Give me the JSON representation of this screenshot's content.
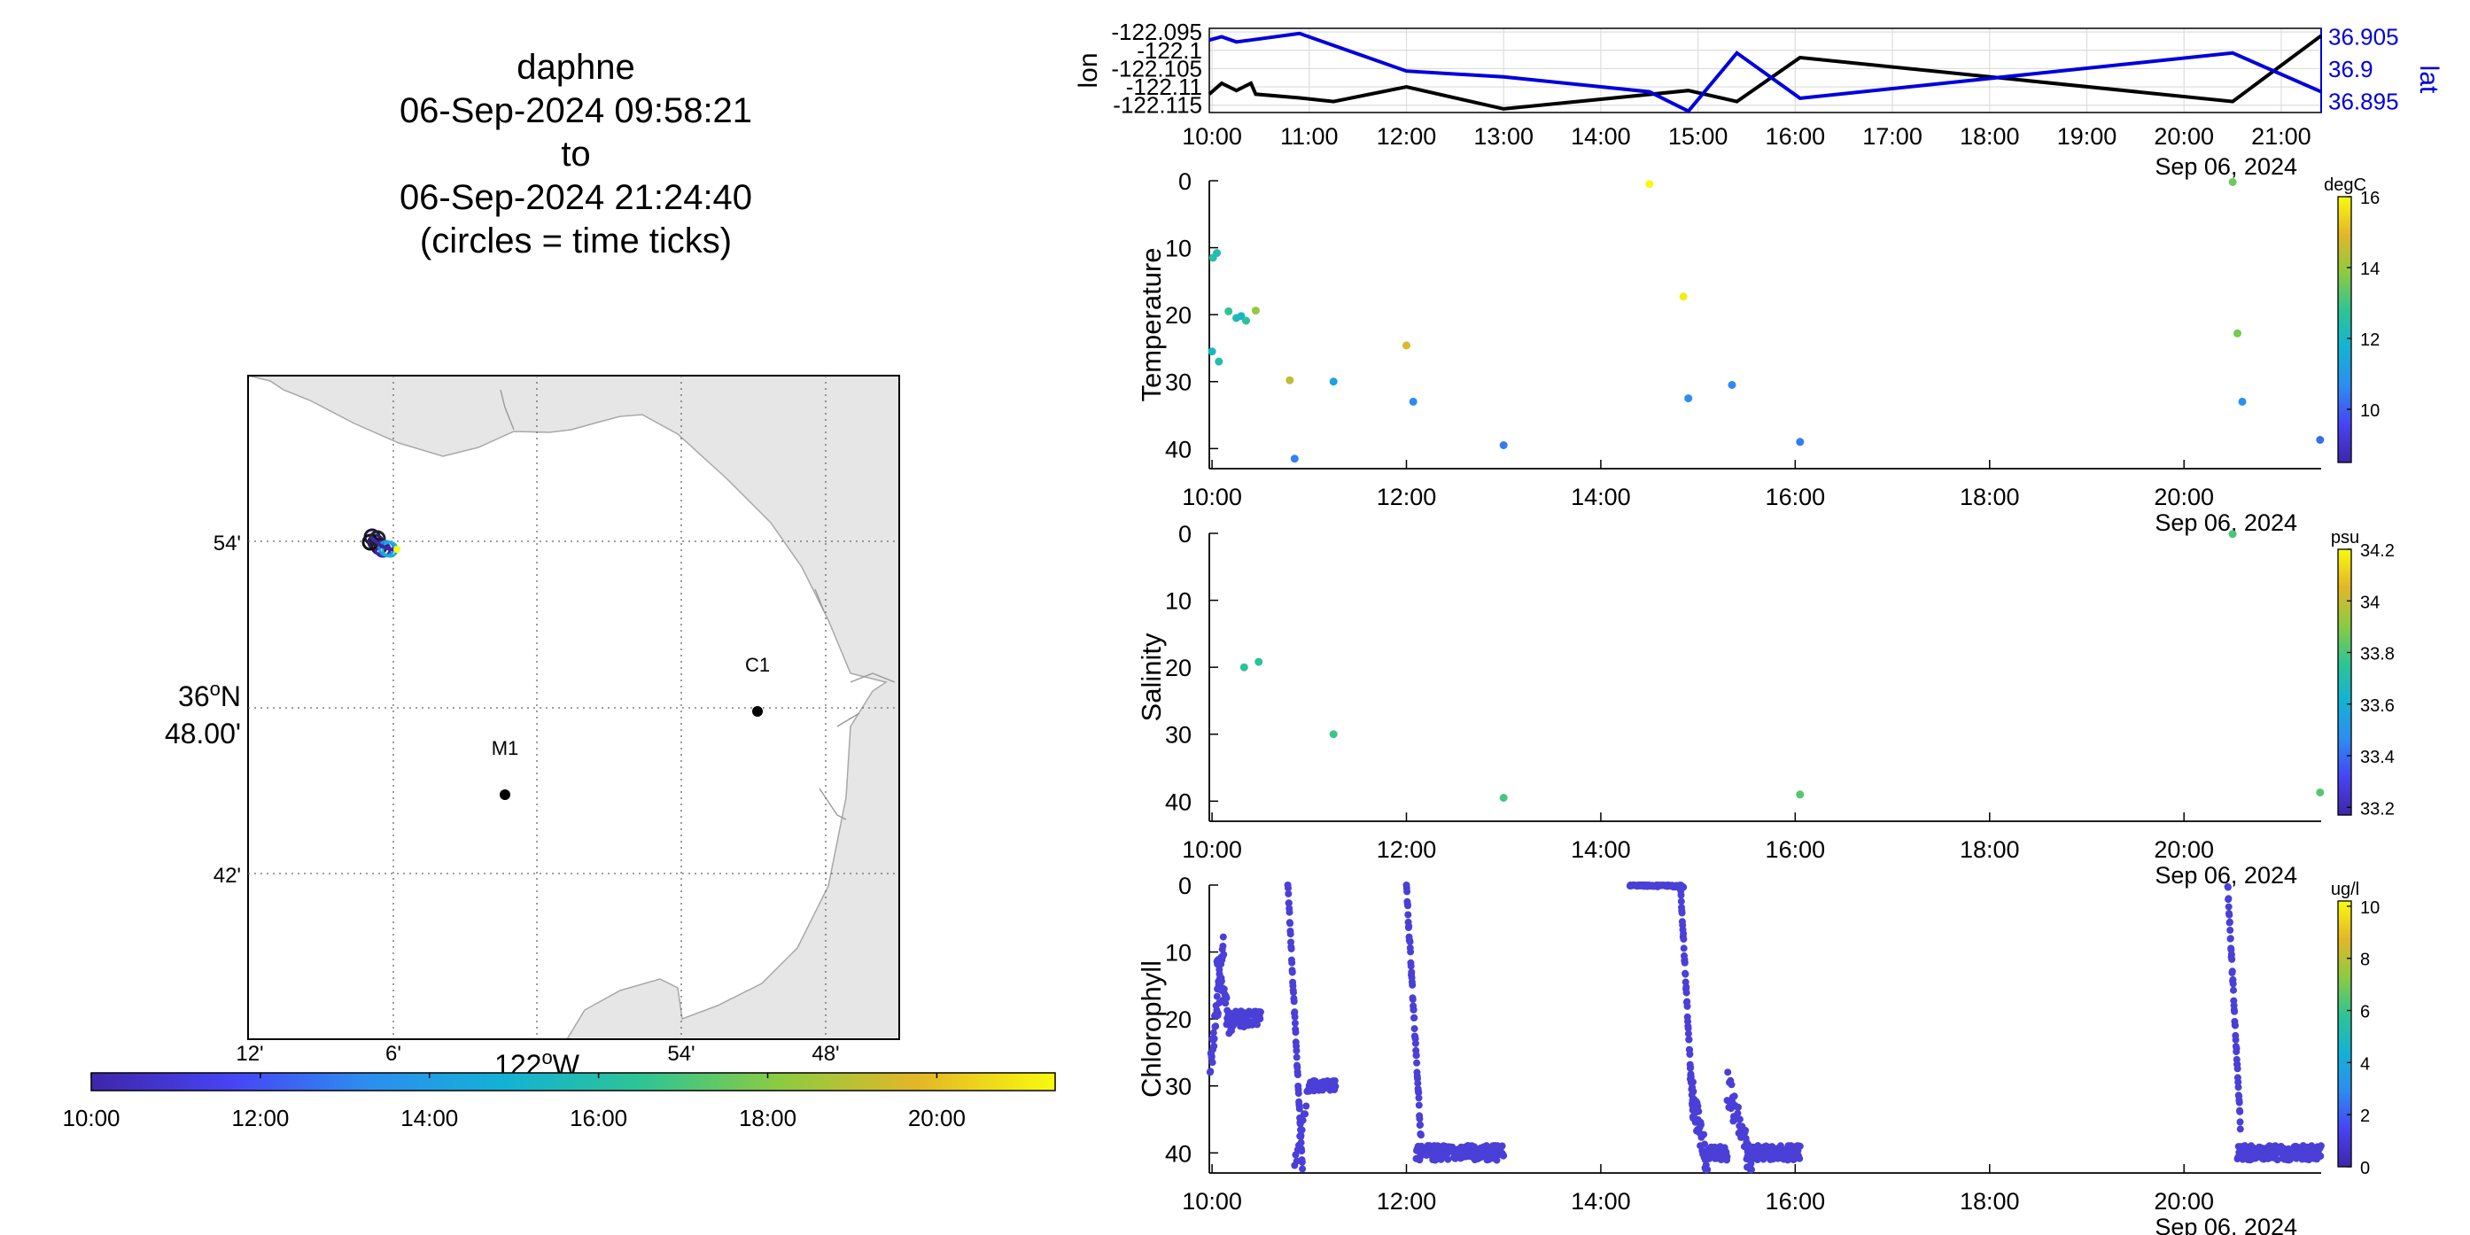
{
  "title": {
    "vehicle": "daphne",
    "start": "06-Sep-2024 09:58:21",
    "to": "to",
    "end": "06-Sep-2024 21:24:40",
    "note": "(circles = time ticks)"
  },
  "colors": {
    "navigation_lon": "#000000",
    "navigation_lat": "#0000dd",
    "land": "#e6e6e6",
    "colormap": [
      "#3e26a8",
      "#4743f4",
      "#2d8df0",
      "#13b2d4",
      "#2ec495",
      "#8ccb41",
      "#e3b628",
      "#f8fa0d"
    ]
  },
  "map": {
    "lat_ticks": [
      "54'",
      "36",
      "o",
      "N",
      "48.00'",
      "42'"
    ],
    "lon_ticks": [
      "12'",
      "6'",
      "122",
      "o",
      "W",
      "54'",
      "48'"
    ],
    "stations": [
      {
        "name": "C1"
      },
      {
        "name": "M1"
      }
    ],
    "time_colorbar_ticks": [
      "10:00",
      "12:00",
      "14:00",
      "16:00",
      "18:00",
      "20:00"
    ]
  },
  "chart_data": [
    {
      "type": "line",
      "name": "navigation",
      "x_ticks": [
        "10:00",
        "11:00",
        "12:00",
        "13:00",
        "14:00",
        "15:00",
        "16:00",
        "17:00",
        "18:00",
        "19:00",
        "20:00",
        "21:00"
      ],
      "date_label": "Sep 06, 2024",
      "xlim": [
        9.972,
        21.411
      ],
      "ylabel_left": "lon",
      "ylabel_right": "lat",
      "left_ticks": [
        "-122.095",
        "-122.1",
        "-122.105",
        "-122.11",
        "-122.115"
      ],
      "right_ticks": [
        "36.905",
        "36.9",
        "36.895"
      ],
      "ylim_left": [
        -122.117,
        -122.094
      ],
      "ylim_right": [
        36.8933,
        36.9063
      ],
      "series": [
        {
          "axis": "left",
          "values": [
            [
              9.972,
              -122.112
            ],
            [
              10.1,
              -122.109
            ],
            [
              10.25,
              -122.111
            ],
            [
              10.4,
              -122.109
            ],
            [
              10.45,
              -122.112
            ],
            [
              10.9,
              -122.113
            ],
            [
              11.25,
              -122.114
            ],
            [
              12.0,
              -122.11
            ],
            [
              13.0,
              -122.116
            ],
            [
              14.9,
              -122.111
            ],
            [
              15.4,
              -122.114
            ],
            [
              16.05,
              -122.102
            ],
            [
              20.5,
              -122.114
            ],
            [
              21.411,
              -122.096
            ]
          ]
        },
        {
          "axis": "right",
          "values": [
            [
              9.972,
              36.9045
            ],
            [
              10.1,
              36.905
            ],
            [
              10.25,
              36.9042
            ],
            [
              10.4,
              36.9045
            ],
            [
              10.9,
              36.9055
            ],
            [
              12.0,
              36.8997
            ],
            [
              13.0,
              36.8988
            ],
            [
              14.5,
              36.8965
            ],
            [
              14.9,
              36.8935
            ],
            [
              15.4,
              36.9025
            ],
            [
              16.05,
              36.8955
            ],
            [
              20.5,
              36.9025
            ],
            [
              21.411,
              36.8965
            ]
          ]
        }
      ]
    },
    {
      "type": "scatter",
      "name": "temperature",
      "ylabel": "Temperature",
      "ylim": [
        0,
        43
      ],
      "y_ticks": [
        "0",
        "10",
        "20",
        "30",
        "40"
      ],
      "x_ticks": [
        "10:00",
        "12:00",
        "14:00",
        "16:00",
        "18:00",
        "20:00"
      ],
      "date_label": "Sep 06, 2024",
      "xlim": [
        9.972,
        21.411
      ],
      "colorbar_unit": "degC",
      "colorbar_ticks": [
        "16",
        "14",
        "12",
        "10"
      ],
      "clim": [
        8.5,
        16.0
      ],
      "points": [
        [
          10.01,
          11.5,
          12.5
        ],
        [
          10.05,
          10.8,
          12.3
        ],
        [
          10.0,
          25.5,
          12.0
        ],
        [
          10.07,
          27.0,
          12.4
        ],
        [
          10.17,
          19.5,
          12.8
        ],
        [
          10.25,
          20.5,
          12.2
        ],
        [
          10.3,
          20.2,
          12.0
        ],
        [
          10.35,
          20.9,
          12.6
        ],
        [
          10.45,
          19.4,
          14.0
        ],
        [
          10.8,
          29.8,
          14.5
        ],
        [
          10.85,
          41.5,
          10.5
        ],
        [
          11.25,
          30.0,
          11.2
        ],
        [
          12.0,
          24.6,
          14.8
        ],
        [
          12.07,
          33.0,
          10.6
        ],
        [
          13.0,
          39.5,
          10.4
        ],
        [
          14.5,
          0.5,
          16.0
        ],
        [
          14.85,
          17.3,
          15.8
        ],
        [
          14.9,
          32.5,
          10.7
        ],
        [
          15.35,
          30.5,
          10.6
        ],
        [
          16.05,
          39.0,
          10.4
        ],
        [
          20.5,
          0.2,
          13.5
        ],
        [
          20.55,
          22.8,
          13.6
        ],
        [
          20.6,
          33.0,
          10.8
        ],
        [
          21.4,
          38.7,
          10.2
        ]
      ]
    },
    {
      "type": "scatter",
      "name": "salinity",
      "ylabel": "Salinity",
      "ylim": [
        0,
        43
      ],
      "y_ticks": [
        "0",
        "10",
        "20",
        "30",
        "40"
      ],
      "x_ticks": [
        "10:00",
        "12:00",
        "14:00",
        "16:00",
        "18:00",
        "20:00"
      ],
      "date_label": "Sep 06, 2024",
      "xlim": [
        9.972,
        21.411
      ],
      "colorbar_unit": "psu",
      "colorbar_ticks": [
        "34.2",
        "34",
        "33.8",
        "33.6",
        "33.4",
        "33.2"
      ],
      "clim": [
        33.17,
        34.2
      ],
      "points": [
        [
          10.33,
          20.0,
          33.75
        ],
        [
          10.48,
          19.2,
          33.75
        ],
        [
          11.25,
          30.0,
          33.78
        ],
        [
          13.0,
          39.5,
          33.8
        ],
        [
          16.05,
          39.0,
          33.82
        ],
        [
          20.5,
          0.1,
          33.8
        ],
        [
          21.4,
          38.7,
          33.82
        ]
      ]
    },
    {
      "type": "scatter",
      "name": "chlorophyll",
      "ylabel": "Chlorophyll",
      "ylim": [
        0,
        43
      ],
      "y_ticks": [
        "0",
        "10",
        "20",
        "30",
        "40"
      ],
      "x_ticks": [
        "10:00",
        "12:00",
        "14:00",
        "16:00",
        "18:00",
        "20:00"
      ],
      "date_label": "Sep 06, 2024",
      "xlim": [
        9.972,
        21.411
      ],
      "colorbar_unit": "ug/l",
      "colorbar_ticks": [
        "10",
        "8",
        "6",
        "4",
        "2",
        "0"
      ],
      "clim": [
        0,
        10.2
      ],
      "segments": [
        {
          "t0": 9.98,
          "t1": 10.12,
          "d0": 28,
          "d1": 9,
          "jitter": 2.5,
          "n": 40
        },
        {
          "t0": 10.05,
          "t1": 10.2,
          "d0": 12,
          "d1": 22,
          "jitter": 2,
          "n": 25
        },
        {
          "t0": 10.15,
          "t1": 10.5,
          "d0": 20,
          "d1": 20,
          "jitter": 1.2,
          "n": 60
        },
        {
          "t0": 10.78,
          "t1": 10.93,
          "d0": 0,
          "d1": 42,
          "jitter": 0.6,
          "n": 55
        },
        {
          "t0": 10.85,
          "t1": 11.0,
          "d0": 42,
          "d1": 30,
          "jitter": 1,
          "n": 15
        },
        {
          "t0": 11.0,
          "t1": 11.27,
          "d0": 30,
          "d1": 30,
          "jitter": 0.8,
          "n": 50
        },
        {
          "t0": 12.0,
          "t1": 12.15,
          "d0": 0,
          "d1": 38,
          "jitter": 0.8,
          "n": 55
        },
        {
          "t0": 12.1,
          "t1": 13.0,
          "d0": 40,
          "d1": 40,
          "jitter": 1.1,
          "n": 180
        },
        {
          "t0": 14.3,
          "t1": 14.85,
          "d0": 0,
          "d1": 0.2,
          "jitter": 0.15,
          "n": 90
        },
        {
          "t0": 14.82,
          "t1": 14.95,
          "d0": 0,
          "d1": 35,
          "jitter": 0.6,
          "n": 50
        },
        {
          "t0": 14.92,
          "t1": 15.1,
          "d0": 30,
          "d1": 42,
          "jitter": 2.5,
          "n": 45
        },
        {
          "t0": 15.1,
          "t1": 15.3,
          "d0": 40,
          "d1": 40,
          "jitter": 1.2,
          "n": 40
        },
        {
          "t0": 15.3,
          "t1": 15.55,
          "d0": 30,
          "d1": 42,
          "jitter": 2.5,
          "n": 45
        },
        {
          "t0": 15.5,
          "t1": 16.05,
          "d0": 40,
          "d1": 40,
          "jitter": 1.1,
          "n": 100
        },
        {
          "t0": 20.45,
          "t1": 20.58,
          "d0": 0,
          "d1": 36,
          "jitter": 0.7,
          "n": 50
        },
        {
          "t0": 20.55,
          "t1": 21.41,
          "d0": 40,
          "d1": 40,
          "jitter": 1.1,
          "n": 160
        }
      ]
    }
  ]
}
